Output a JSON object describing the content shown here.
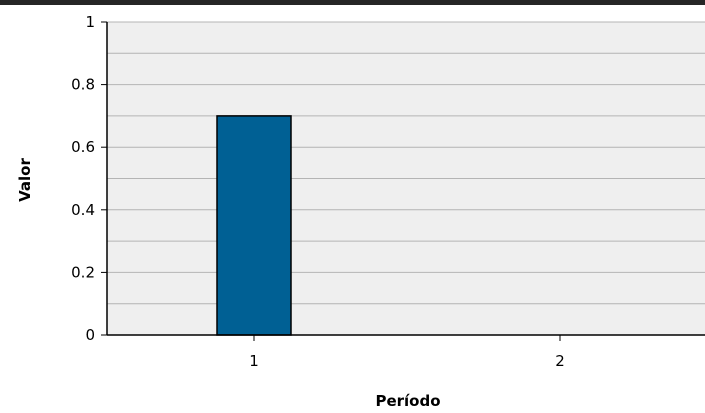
{
  "chart_data": {
    "type": "bar",
    "categories": [
      "1",
      "2"
    ],
    "values": [
      0.7,
      0
    ],
    "xlabel": "Período",
    "ylabel": "Valor",
    "ylim": [
      0,
      1
    ],
    "yticks": [
      "0",
      "0.2",
      "0.4",
      "0.6",
      "0.8",
      "1"
    ],
    "grid": true,
    "colors": {
      "bar": "#006094",
      "plot_background": "#efefef",
      "gridline": "#b4b4b4"
    }
  }
}
